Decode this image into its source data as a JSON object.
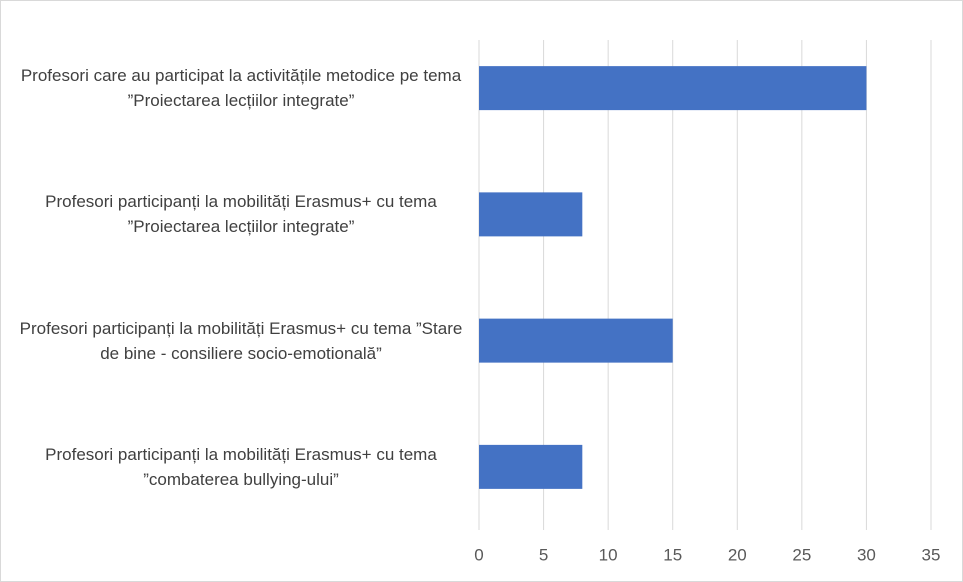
{
  "chart_data": {
    "type": "bar",
    "orientation": "horizontal",
    "categories": [
      "Profesori care au participat la activitățile metodice pe tema ”Proiectarea lecțiilor integrate”",
      "Profesori participanți la mobilități Erasmus+ cu tema ”Proiectarea lecțiilor integrate”",
      "Profesori participanți la mobilități Erasmus+ cu tema ”Stare de bine - consiliere socio-emotională”",
      "Profesori participanți la mobilități Erasmus+ cu tema ”combaterea bullying-ului”"
    ],
    "values": [
      30,
      8,
      15,
      8
    ],
    "color": "#4472c4",
    "xlim": [
      0,
      35
    ],
    "xticks": [
      0,
      5,
      10,
      15,
      20,
      25,
      30,
      35
    ],
    "grid": true
  }
}
